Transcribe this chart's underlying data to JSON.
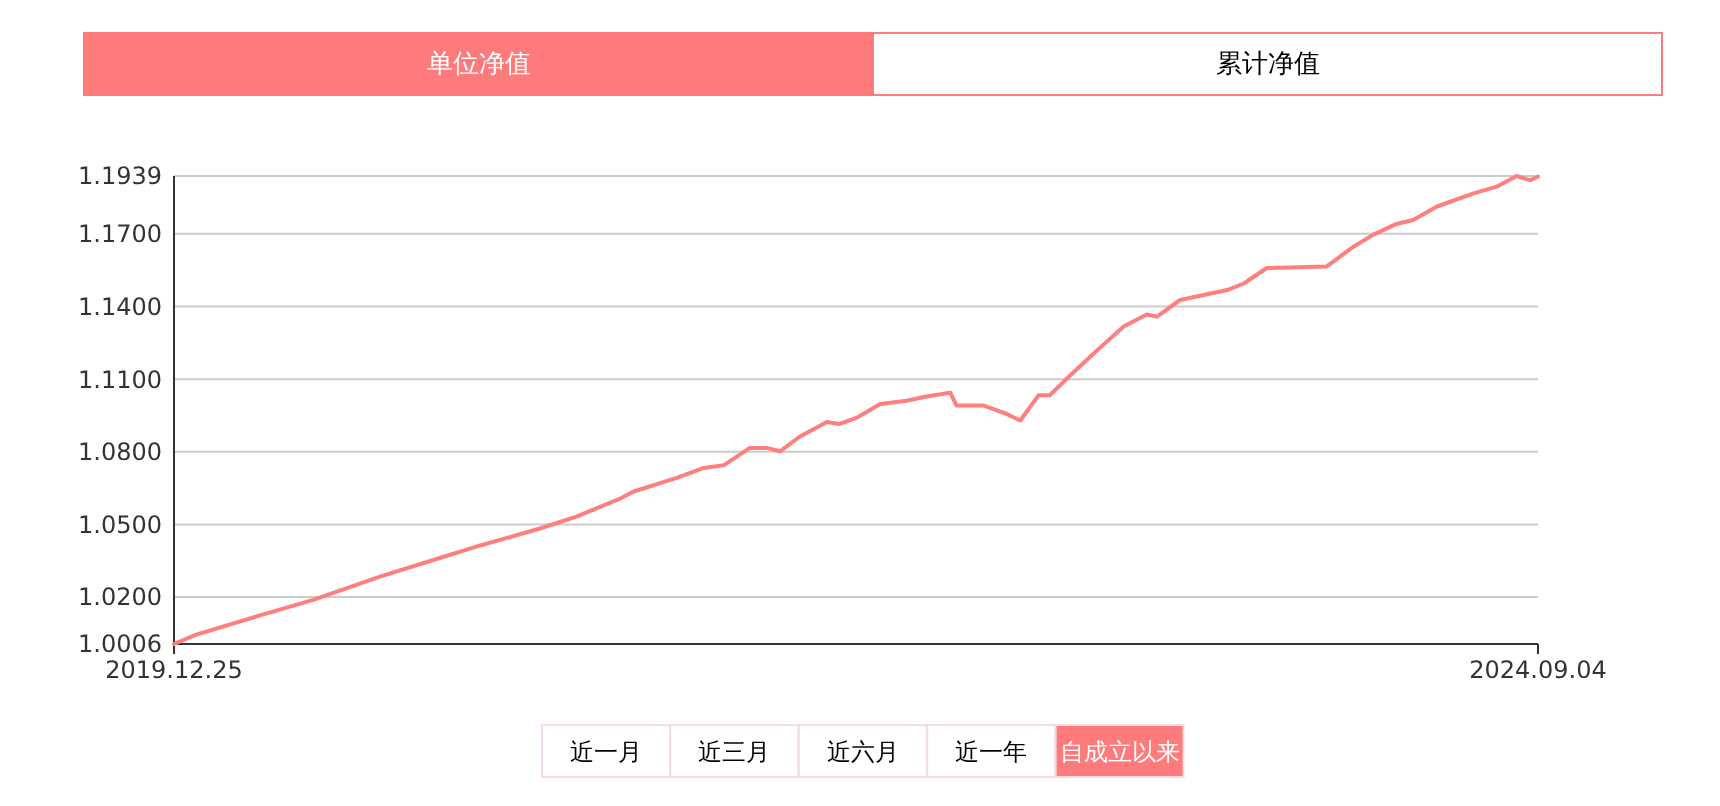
{
  "chart_data": {
    "type": "line",
    "x": [
      "2019-12-25",
      "2020-01-22",
      "2020-04-11",
      "2020-06-17",
      "2020-09-09",
      "2020-11-15",
      "2021-01-13",
      "2021-03-29",
      "2021-05-14",
      "2021-07-08",
      "2021-07-25",
      "2021-09-17",
      "2021-10-21",
      "2021-11-15",
      "2021-12-18",
      "2022-01-08",
      "2022-01-25",
      "2022-02-19",
      "2022-03-25",
      "2022-04-10",
      "2022-05-01",
      "2022-05-31",
      "2022-07-03",
      "2022-07-28",
      "2022-08-27",
      "2022-09-04",
      "2022-10-08",
      "2022-11-06",
      "2022-11-23",
      "2022-12-16",
      "2022-12-30",
      "2023-01-25",
      "2023-03-03",
      "2023-04-02",
      "2023-05-01",
      "2023-05-14",
      "2023-06-12",
      "2023-08-10",
      "2023-08-31",
      "2023-09-29",
      "2023-12-13",
      "2024-01-16",
      "2024-02-10",
      "2024-03-10",
      "2024-03-31",
      "2024-04-30",
      "2024-06-15",
      "2024-07-14",
      "2024-08-08",
      "2024-08-25",
      "2024-09-04"
    ],
    "series": [
      {
        "color": "#ff7f7f",
        "values": [
          1.0006,
          1.0045,
          1.0124,
          1.0188,
          1.0284,
          1.0353,
          1.0413,
          1.0483,
          1.0532,
          1.0607,
          1.0636,
          1.0692,
          1.0733,
          1.0744,
          1.0816,
          1.0816,
          1.0802,
          1.0863,
          1.0923,
          1.0915,
          1.094,
          1.0997,
          1.1011,
          1.1028,
          1.1044,
          1.0991,
          1.0991,
          1.0956,
          1.0929,
          1.1033,
          1.1033,
          1.1116,
          1.1229,
          1.1317,
          1.1367,
          1.1358,
          1.1427,
          1.1468,
          1.1495,
          1.1559,
          1.1565,
          1.1647,
          1.1697,
          1.1741,
          1.1757,
          1.1813,
          1.1867,
          1.1895,
          1.1939,
          1.1922,
          1.1937
        ]
      }
    ],
    "xlim": [
      "2019-12-25",
      "2024-09-04"
    ],
    "xticks": [
      {
        "value": "2019-12-25",
        "label": "2019.12.25"
      },
      {
        "value": "2024-09-04",
        "label": "2024.09.04"
      }
    ],
    "ylim": [
      1.0006,
      1.1939
    ],
    "yticks": [
      {
        "value": 1.0006,
        "label": "1.0006"
      },
      {
        "value": 1.02,
        "label": "1.0200"
      },
      {
        "value": 1.05,
        "label": "1.0500"
      },
      {
        "value": 1.08,
        "label": "1.0800"
      },
      {
        "value": 1.11,
        "label": "1.1100"
      },
      {
        "value": 1.14,
        "label": "1.1400"
      },
      {
        "value": 1.17,
        "label": "1.1700"
      },
      {
        "value": 1.1939,
        "label": "1.1939"
      }
    ],
    "grid": "y",
    "marker": "none",
    "line_style": "solid",
    "annotations": [
      "单位净值",
      "累计净值",
      "近一月",
      "近三月",
      "近六月",
      "近一年",
      "自成立以来"
    ]
  }
}
